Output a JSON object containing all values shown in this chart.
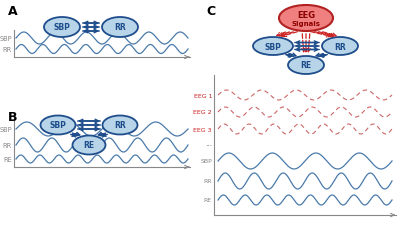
{
  "bg_color": "#ffffff",
  "node_fill_blue": "#b8d4e8",
  "node_edge_blue": "#1e4d8c",
  "node_fill_red": "#f08080",
  "node_edge_red": "#b22222",
  "arrow_blue": "#1e4d8c",
  "arrow_red": "#cc2222",
  "wave_blue": "#4a7aaa",
  "wave_red": "#cc6666",
  "axis_color": "#888888",
  "label_color_gray": "#555555",
  "panel_A": "A",
  "panel_B": "B",
  "panel_C": "C",
  "eeg_label1": "EEG",
  "eeg_label2": "Signals",
  "wave_labels_red": [
    "EEG 1",
    "EEG 2",
    "EEG 3"
  ],
  "wave_labels_blue_c": [
    "SBP",
    "RR",
    "RE"
  ],
  "dots": "..."
}
